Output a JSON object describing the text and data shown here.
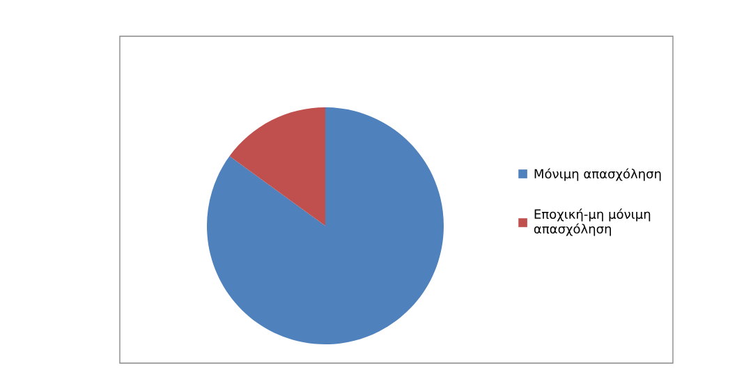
{
  "chart_data": {
    "type": "pie",
    "categories": [
      "Μόνιμη απασχόληση",
      "Εποχική-μη μόνιμη απασχόληση"
    ],
    "values": [
      85,
      15
    ],
    "colors": [
      "#4f81bd",
      "#c0504d"
    ],
    "legend": "right"
  }
}
